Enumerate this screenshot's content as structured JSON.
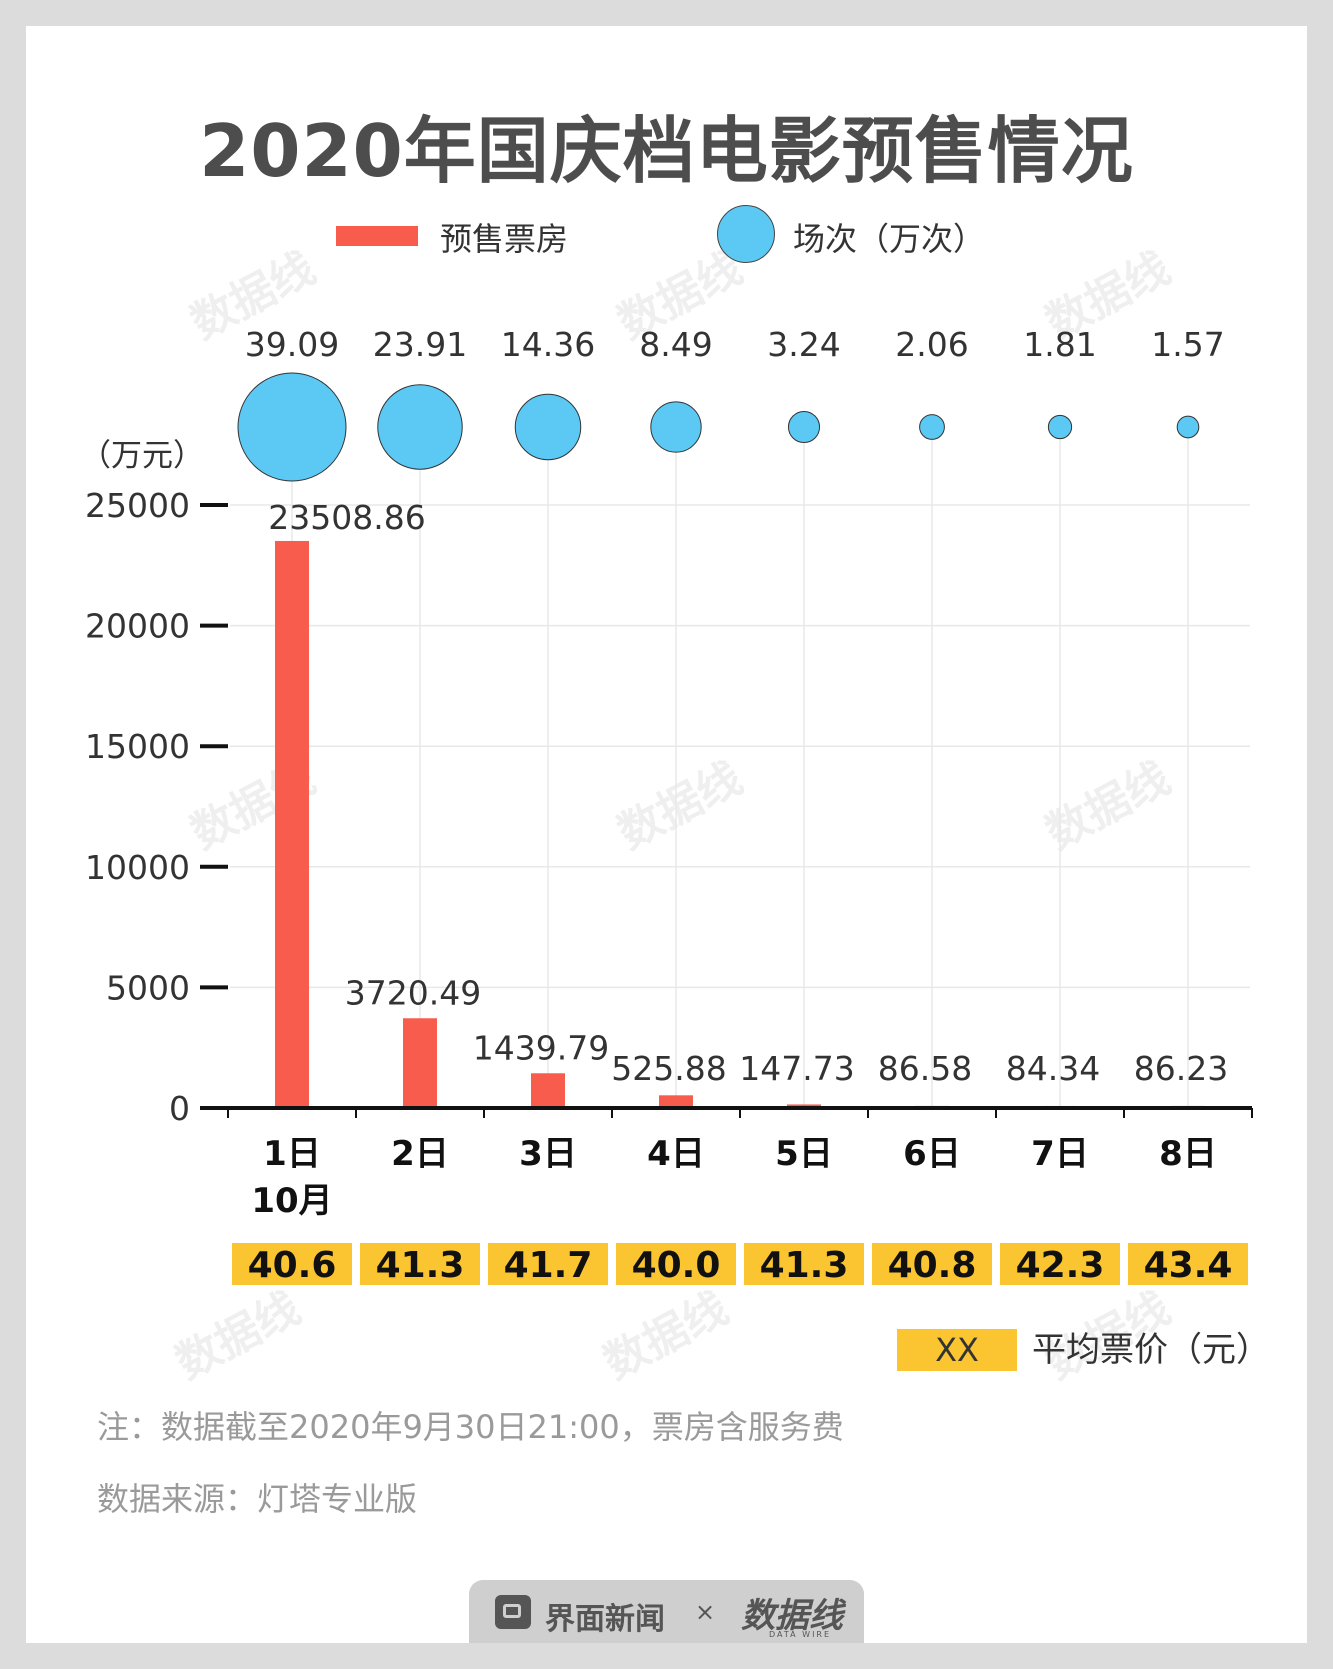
{
  "title": "2020年国庆档电影预售情况",
  "legend": {
    "bar_label": "预售票房",
    "circle_label": "场次（万次）"
  },
  "unit_label": "（万元）",
  "colors": {
    "bar": "#f75c4c",
    "circle": "#5bc9f4",
    "price_box": "#fbc531",
    "axis": "#111111",
    "text": "#333333"
  },
  "chart_data": {
    "type": "bar",
    "title": "2020年国庆档电影预售情况",
    "xlabel": "",
    "ylabel": "（万元）",
    "month_label": "10月",
    "categories": [
      "1日",
      "2日",
      "3日",
      "4日",
      "5日",
      "6日",
      "7日",
      "8日"
    ],
    "ylim": [
      0,
      25000
    ],
    "yticks": [
      0,
      5000,
      10000,
      15000,
      20000,
      25000
    ],
    "grid": true,
    "series": [
      {
        "name": "预售票房",
        "values": [
          23508.86,
          3720.49,
          1439.79,
          525.88,
          147.73,
          86.58,
          84.34,
          86.23
        ],
        "labels": [
          "23508.86",
          "3720.49",
          "1439.79",
          "525.88",
          "147.73",
          "86.58",
          "84.34",
          "86.23"
        ]
      },
      {
        "name": "场次（万次）",
        "values": [
          39.09,
          23.91,
          14.36,
          8.49,
          3.24,
          2.06,
          1.81,
          1.57
        ],
        "labels": [
          "39.09",
          "23.91",
          "14.36",
          "8.49",
          "3.24",
          "2.06",
          "1.81",
          "1.57"
        ]
      },
      {
        "name": "平均票价（元）",
        "values": [
          40.6,
          41.3,
          41.7,
          40.0,
          41.3,
          40.8,
          42.3,
          43.4
        ],
        "labels": [
          "40.6",
          "41.3",
          "41.7",
          "40.0",
          "41.3",
          "40.8",
          "42.3",
          "43.4"
        ]
      }
    ]
  },
  "price_legend": {
    "swatch_text": "XX",
    "label": "平均票价（元）"
  },
  "note": "注：数据截至2020年9月30日21:00，票房含服务费",
  "source": "数据来源：灯塔专业版",
  "footer": {
    "brand": "界面新闻",
    "separator": "×",
    "logo_text": "数据线",
    "logo_sub": "DATA WIRE"
  }
}
